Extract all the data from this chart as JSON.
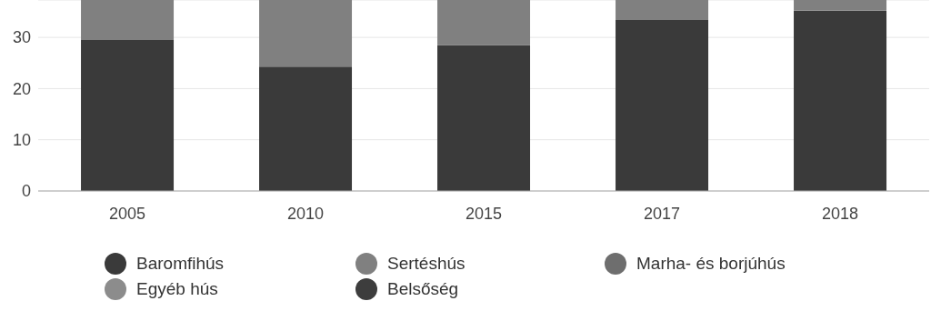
{
  "chart_data": {
    "type": "bar",
    "stacked": true,
    "categories": [
      "2005",
      "2010",
      "2015",
      "2017",
      "2018"
    ],
    "series": [
      {
        "name": "Baromfihús",
        "color": "#3a3a3a",
        "values": [
          29.5,
          24.3,
          28.5,
          33.4,
          35.2
        ]
      },
      {
        "name": "Sertéshús",
        "color": "#808080",
        "values": [
          7.8,
          13.0,
          8.8,
          3.9,
          2.1
        ]
      },
      {
        "name": "Marha- és borjúhús",
        "color": "#6e6e6e",
        "values": [
          null,
          null,
          null,
          null,
          null
        ]
      },
      {
        "name": "Egyéb hús",
        "color": "#8c8c8c",
        "values": [
          null,
          null,
          null,
          null,
          null
        ]
      },
      {
        "name": "Belsőség",
        "color": "#3d3d3d",
        "values": [
          null,
          null,
          null,
          null,
          null
        ]
      }
    ],
    "ylim": [
      0,
      37.3
    ],
    "yticks": [
      0,
      10,
      20,
      30
    ],
    "grid": "y",
    "legend": "bottom"
  }
}
